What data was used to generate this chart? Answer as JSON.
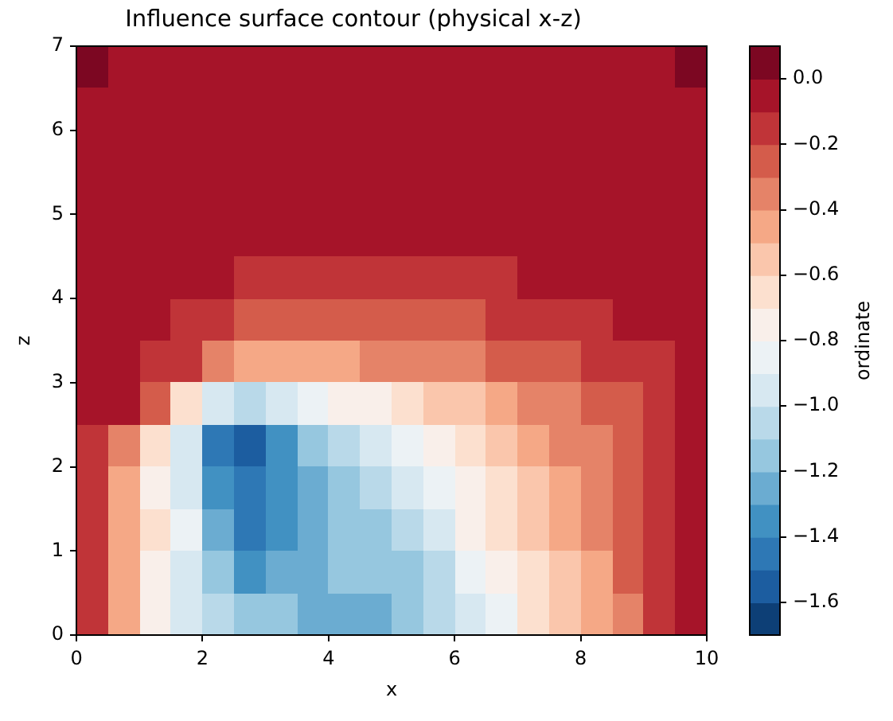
{
  "chart_data": {
    "type": "heatmap",
    "title": "Influence surface contour (physical x-z)",
    "xlabel": "x",
    "ylabel": "z",
    "clabel": "ordinate",
    "xlim": [
      0,
      10
    ],
    "ylim": [
      0,
      7
    ],
    "xticks": [
      0,
      2,
      4,
      6,
      8,
      10
    ],
    "yticks": [
      0,
      1,
      2,
      3,
      4,
      5,
      6,
      7
    ],
    "clim": [
      -1.7,
      0.1
    ],
    "cticks": [
      {
        "value": -1.6,
        "label": "−1.6"
      },
      {
        "value": -1.4,
        "label": "−1.4"
      },
      {
        "value": -1.2,
        "label": "−1.2"
      },
      {
        "value": -1.0,
        "label": "−1.0"
      },
      {
        "value": -0.8,
        "label": "−0.8"
      },
      {
        "value": -0.6,
        "label": "−0.6"
      },
      {
        "value": -0.4,
        "label": "−0.4"
      },
      {
        "value": -0.2,
        "label": "−0.2"
      },
      {
        "value": 0,
        "label": "0.0"
      }
    ],
    "cells": [
      [
        0.02,
        -0.01,
        -0.04,
        -0.05,
        -0.05,
        -0.05,
        -0.05,
        -0.05,
        -0.05,
        -0.05,
        -0.05,
        -0.05,
        -0.05,
        -0.05,
        -0.05,
        -0.05,
        -0.05,
        -0.04,
        -0.03,
        0.01
      ],
      [
        -0.02,
        -0.04,
        -0.05,
        -0.05,
        -0.05,
        -0.05,
        -0.05,
        -0.05,
        -0.05,
        -0.05,
        -0.05,
        -0.05,
        -0.05,
        -0.05,
        -0.05,
        -0.05,
        -0.05,
        -0.05,
        -0.04,
        -0.01
      ],
      [
        -0.04,
        -0.05,
        -0.05,
        -0.05,
        -0.05,
        -0.05,
        -0.05,
        -0.05,
        -0.05,
        -0.05,
        -0.05,
        -0.05,
        -0.05,
        -0.05,
        -0.05,
        -0.05,
        -0.05,
        -0.05,
        -0.05,
        -0.04
      ],
      [
        -0.05,
        -0.05,
        -0.05,
        -0.05,
        -0.05,
        -0.05,
        -0.05,
        -0.05,
        -0.05,
        -0.05,
        -0.05,
        -0.05,
        -0.05,
        -0.05,
        -0.05,
        -0.05,
        -0.05,
        -0.05,
        -0.05,
        -0.05
      ],
      [
        -0.06,
        -0.06,
        -0.06,
        -0.06,
        -0.06,
        -0.07,
        -0.07,
        -0.07,
        -0.07,
        -0.07,
        -0.07,
        -0.07,
        -0.07,
        -0.07,
        -0.06,
        -0.06,
        -0.06,
        -0.06,
        -0.06,
        -0.05
      ],
      [
        -0.06,
        -0.06,
        -0.07,
        -0.08,
        -0.09,
        -0.11,
        -0.12,
        -0.12,
        -0.13,
        -0.13,
        -0.13,
        -0.14,
        -0.13,
        -0.12,
        -0.09,
        -0.09,
        -0.09,
        -0.08,
        -0.07,
        -0.06
      ],
      [
        -0.06,
        -0.07,
        -0.09,
        -0.12,
        -0.15,
        -0.21,
        -0.22,
        -0.23,
        -0.23,
        -0.23,
        -0.23,
        -0.22,
        -0.21,
        -0.19,
        -0.17,
        -0.14,
        -0.12,
        -0.09,
        -0.08,
        -0.06
      ],
      [
        -0.06,
        -0.08,
        -0.13,
        -0.19,
        -0.38,
        -0.48,
        -0.49,
        -0.47,
        -0.43,
        -0.39,
        -0.37,
        -0.34,
        -0.31,
        -0.28,
        -0.26,
        -0.22,
        -0.19,
        -0.15,
        -0.11,
        -0.07
      ],
      [
        -0.07,
        -0.08,
        -0.25,
        -0.67,
        -0.94,
        -1.01,
        -0.93,
        -0.85,
        -0.77,
        -0.71,
        -0.64,
        -0.57,
        -0.51,
        -0.44,
        -0.38,
        -0.33,
        -0.27,
        -0.21,
        -0.14,
        -0.08
      ],
      [
        -0.12,
        -0.32,
        -0.61,
        -0.91,
        -1.45,
        -1.52,
        -1.33,
        -1.18,
        -1.05,
        -0.92,
        -0.83,
        -0.76,
        -0.67,
        -0.57,
        -0.48,
        -0.39,
        -0.31,
        -0.23,
        -0.14,
        -0.08
      ],
      [
        -0.16,
        -0.42,
        -0.72,
        -0.93,
        -1.36,
        -1.47,
        -1.33,
        -1.21,
        -1.11,
        -1.01,
        -0.92,
        -0.83,
        -0.73,
        -0.62,
        -0.52,
        -0.43,
        -0.34,
        -0.24,
        -0.15,
        -0.07
      ],
      [
        -0.17,
        -0.45,
        -0.69,
        -0.88,
        -1.21,
        -1.44,
        -1.38,
        -1.26,
        -1.19,
        -1.13,
        -1.04,
        -0.92,
        -0.79,
        -0.68,
        -0.57,
        -0.46,
        -0.36,
        -0.26,
        -0.16,
        -0.07
      ],
      [
        -0.18,
        -0.48,
        -0.73,
        -0.92,
        -1.13,
        -1.33,
        -1.28,
        -1.24,
        -1.17,
        -1.19,
        -1.12,
        -1.02,
        -0.89,
        -0.76,
        -0.64,
        -0.53,
        -0.41,
        -0.29,
        -0.17,
        -0.06
      ],
      [
        -0.17,
        -0.49,
        -0.74,
        -0.93,
        -1.07,
        -1.15,
        -1.19,
        -1.21,
        -1.22,
        -1.21,
        -1.18,
        -1.09,
        -0.95,
        -0.82,
        -0.69,
        -0.57,
        -0.45,
        -0.31,
        -0.19,
        -0.06
      ]
    ]
  }
}
